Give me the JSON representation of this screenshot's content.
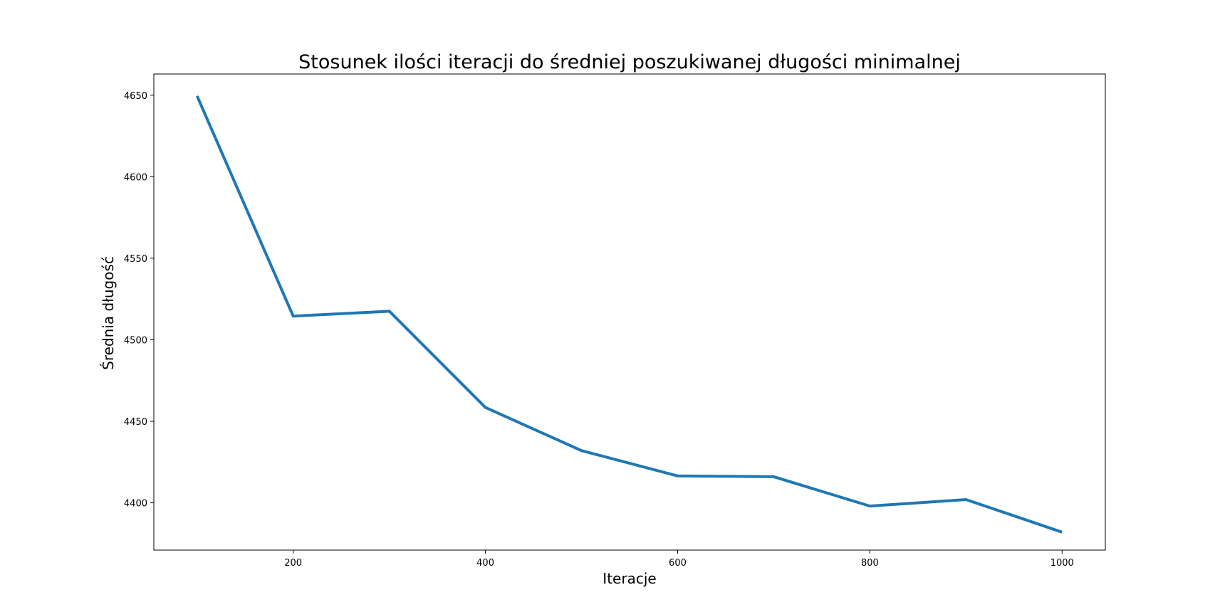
{
  "chart_data": {
    "type": "line",
    "title": "Stosunek ilości iteracji do średniej poszukiwanej długości minimalnej",
    "xlabel": "Iteracje",
    "ylabel": "Średnia długość",
    "x": [
      100,
      200,
      300,
      400,
      500,
      600,
      700,
      800,
      900,
      1000
    ],
    "series": [
      {
        "values": [
          4649.5,
          4514.5,
          4517.5,
          4458.5,
          4432,
          4416.5,
          4416,
          4398,
          4402,
          4382
        ]
      }
    ],
    "xlim": [
      55,
      1045
    ],
    "ylim": [
      4371,
      4663
    ],
    "xticks": [
      200,
      400,
      600,
      800,
      1000
    ],
    "yticks": [
      4400,
      4450,
      4500,
      4550,
      4600,
      4650
    ],
    "grid": false,
    "line_color": "#1f77b4"
  }
}
